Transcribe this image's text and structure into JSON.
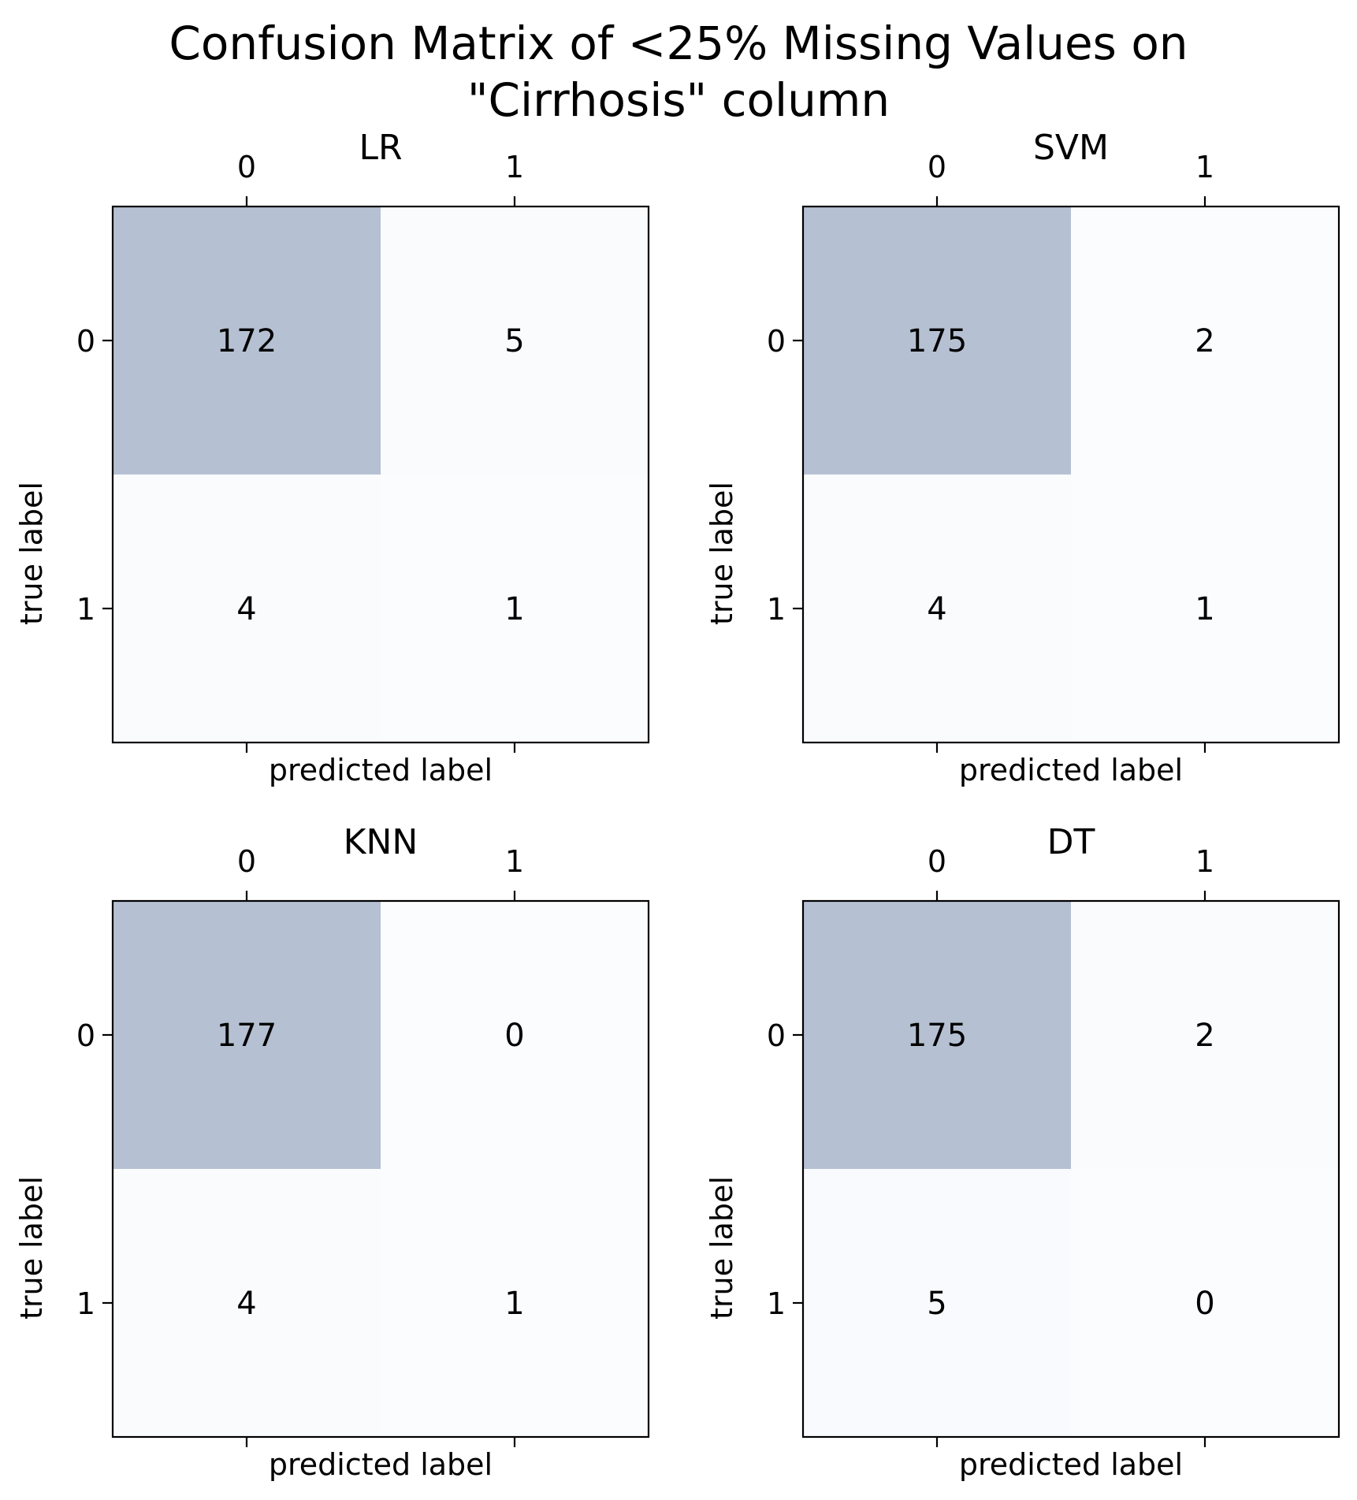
{
  "chart_data": {
    "type": "heatmap",
    "title": "Confusion Matrix of <25% Missing Values on\n\"Cirrhosis\" column",
    "color_high": "#b5c0d2",
    "color_low": "#fbfcfe",
    "panels": [
      {
        "title": "LR",
        "xlabel": "predicted label",
        "ylabel": "true label",
        "x_ticks": [
          "0",
          "1"
        ],
        "y_ticks": [
          "0",
          "1"
        ],
        "matrix": [
          [
            172,
            5
          ],
          [
            4,
            1
          ]
        ]
      },
      {
        "title": "SVM",
        "xlabel": "predicted label",
        "ylabel": "true label",
        "x_ticks": [
          "0",
          "1"
        ],
        "y_ticks": [
          "0",
          "1"
        ],
        "matrix": [
          [
            175,
            2
          ],
          [
            4,
            1
          ]
        ]
      },
      {
        "title": "KNN",
        "xlabel": "predicted label",
        "ylabel": "true label",
        "x_ticks": [
          "0",
          "1"
        ],
        "y_ticks": [
          "0",
          "1"
        ],
        "matrix": [
          [
            177,
            0
          ],
          [
            4,
            1
          ]
        ]
      },
      {
        "title": "DT",
        "xlabel": "predicted label",
        "ylabel": "true label",
        "x_ticks": [
          "0",
          "1"
        ],
        "y_ticks": [
          "0",
          "1"
        ],
        "matrix": [
          [
            175,
            2
          ],
          [
            5,
            0
          ]
        ]
      }
    ]
  }
}
